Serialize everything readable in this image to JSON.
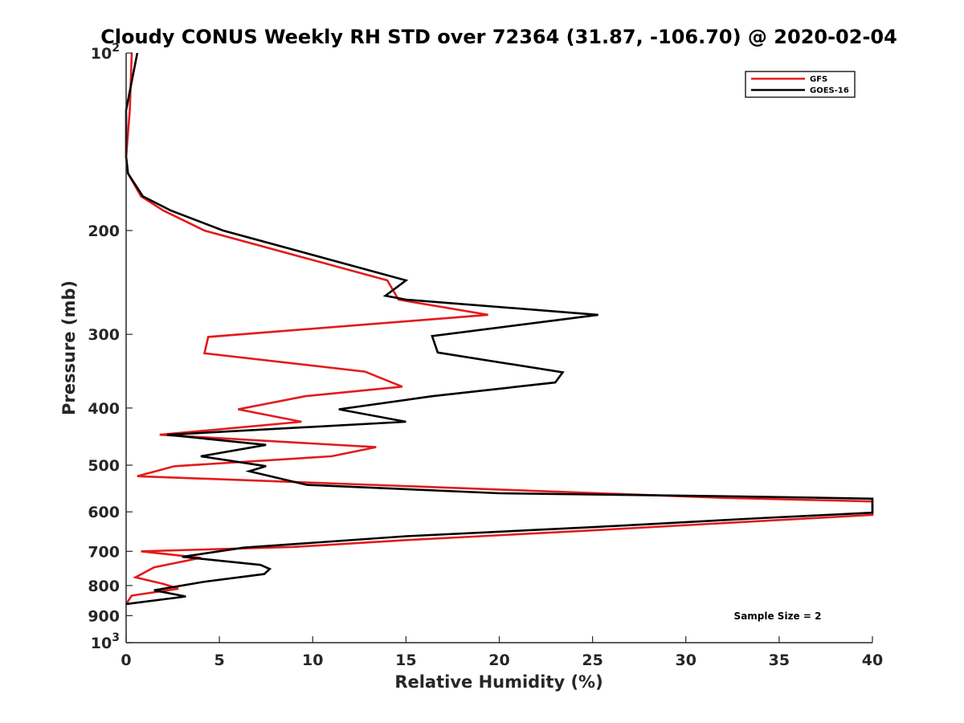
{
  "chart_data": {
    "type": "line",
    "title": "Cloudy CONUS Weekly RH STD over 72364 (31.87, -106.70) @ 2020-02-04",
    "xlabel": "Relative Humidity (%)",
    "ylabel": "Pressure (mb)",
    "xlim": [
      0,
      40
    ],
    "ylim": [
      100,
      1000
    ],
    "y_scale": "log",
    "y_reversed": true,
    "grid": false,
    "legend_position": "top-right",
    "x_ticks": [
      {
        "value": 0,
        "label": "0"
      },
      {
        "value": 5,
        "label": "5"
      },
      {
        "value": 10,
        "label": "10"
      },
      {
        "value": 15,
        "label": "15"
      },
      {
        "value": 20,
        "label": "20"
      },
      {
        "value": 25,
        "label": "25"
      },
      {
        "value": 30,
        "label": "30"
      },
      {
        "value": 35,
        "label": "35"
      },
      {
        "value": 40,
        "label": "40"
      }
    ],
    "y_ticks": [
      {
        "value": 100,
        "base": "10",
        "exp": "2"
      },
      {
        "value": 200,
        "base": "200",
        "exp": ""
      },
      {
        "value": 300,
        "base": "300",
        "exp": ""
      },
      {
        "value": 400,
        "base": "400",
        "exp": ""
      },
      {
        "value": 500,
        "base": "500",
        "exp": ""
      },
      {
        "value": 600,
        "base": "600",
        "exp": ""
      },
      {
        "value": 700,
        "base": "700",
        "exp": ""
      },
      {
        "value": 800,
        "base": "800",
        "exp": ""
      },
      {
        "value": 900,
        "base": "900",
        "exp": ""
      },
      {
        "value": 1000,
        "base": "10",
        "exp": "3"
      }
    ],
    "series": [
      {
        "name": "GFS",
        "color": "#e41a1c",
        "points": [
          [
            0.3,
            100
          ],
          [
            0.2,
            125
          ],
          [
            0.0,
            150
          ],
          [
            0.1,
            160
          ],
          [
            0.8,
            175
          ],
          [
            2.0,
            185
          ],
          [
            4.2,
            200
          ],
          [
            14.0,
            243
          ],
          [
            14.6,
            262
          ],
          [
            19.4,
            278
          ],
          [
            4.4,
            303
          ],
          [
            4.2,
            323
          ],
          [
            12.8,
            347
          ],
          [
            14.8,
            368
          ],
          [
            9.6,
            382
          ],
          [
            6.0,
            402
          ],
          [
            9.4,
            422
          ],
          [
            1.8,
            444
          ],
          [
            13.4,
            466
          ],
          [
            11.0,
            483
          ],
          [
            2.6,
            502
          ],
          [
            0.6,
            522
          ],
          [
            20.0,
            550
          ],
          [
            32.0,
            568
          ],
          [
            40.0,
            576
          ],
          [
            40.0,
            607
          ],
          [
            25.0,
            645
          ],
          [
            15.0,
            670
          ],
          [
            9.0,
            688
          ],
          [
            0.8,
            700
          ],
          [
            4.0,
            718
          ],
          [
            1.5,
            745
          ],
          [
            0.5,
            775
          ],
          [
            2.0,
            795
          ],
          [
            2.8,
            810
          ],
          [
            0.3,
            832
          ],
          [
            0.0,
            860
          ]
        ]
      },
      {
        "name": "GOES-16",
        "color": "#000000",
        "points": [
          [
            0.6,
            100
          ],
          [
            0.0,
            125
          ],
          [
            0.0,
            150
          ],
          [
            0.1,
            160
          ],
          [
            0.9,
            175
          ],
          [
            2.4,
            185
          ],
          [
            5.2,
            200
          ],
          [
            15.0,
            243
          ],
          [
            13.9,
            258
          ],
          [
            15.0,
            262
          ],
          [
            25.3,
            278
          ],
          [
            16.4,
            302
          ],
          [
            16.7,
            322
          ],
          [
            23.4,
            348
          ],
          [
            23.0,
            362
          ],
          [
            16.4,
            382
          ],
          [
            11.4,
            402
          ],
          [
            15.0,
            422
          ],
          [
            2.2,
            444
          ],
          [
            7.5,
            462
          ],
          [
            4.0,
            483
          ],
          [
            7.5,
            502
          ],
          [
            6.6,
            512
          ],
          [
            9.7,
            540
          ],
          [
            20.0,
            558
          ],
          [
            33.0,
            565
          ],
          [
            40.0,
            570
          ],
          [
            40.0,
            602
          ],
          [
            34.0,
            615
          ],
          [
            25.0,
            637
          ],
          [
            15.0,
            660
          ],
          [
            6.3,
            690
          ],
          [
            3.0,
            715
          ],
          [
            7.2,
            738
          ],
          [
            7.7,
            750
          ],
          [
            7.4,
            765
          ],
          [
            4.2,
            788
          ],
          [
            1.5,
            815
          ],
          [
            3.2,
            835
          ],
          [
            0.0,
            860
          ]
        ]
      }
    ],
    "annotations": [
      {
        "text": "Sample Size = 2"
      }
    ]
  }
}
